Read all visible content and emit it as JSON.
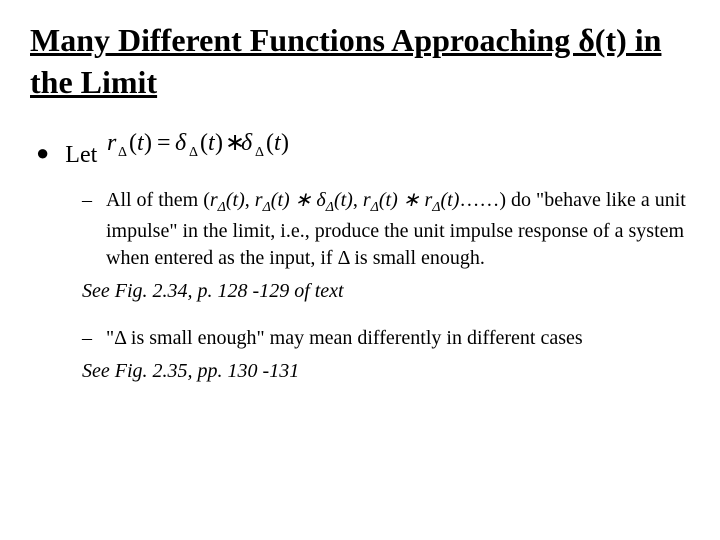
{
  "title": "Many Different Functions Approaching δ(t) in the Limit",
  "mainBullet": {
    "label": "Let",
    "formula": "r_Δ(t) = δ_Δ(t) * δ_Δ(t)"
  },
  "subBullets": [
    {
      "textParts": {
        "pre": "All of them (",
        "f1": "r_Δ(t)",
        "sep1": ", ",
        "f2": "r_Δ(t) ∗ δ_Δ(t)",
        "sep2": ", ",
        "f3": "r_Δ(t) ∗ r_Δ(t)",
        "post": "……) do \"behave like a unit impulse\" in the limit, i.e., produce the unit impulse response of a system when entered as the input, if Δ is small enough."
      },
      "ref": "See Fig. 2.34, p. 128 -129 of text"
    },
    {
      "text": "\"Δ is small enough\" may mean differently in different cases",
      "ref": "See Fig. 2.35, pp. 130 -131"
    }
  ],
  "colors": {
    "text": "#000000",
    "background": "#ffffff"
  },
  "fonts": {
    "title_size": 32,
    "body_size": 24,
    "sub_size": 20
  }
}
